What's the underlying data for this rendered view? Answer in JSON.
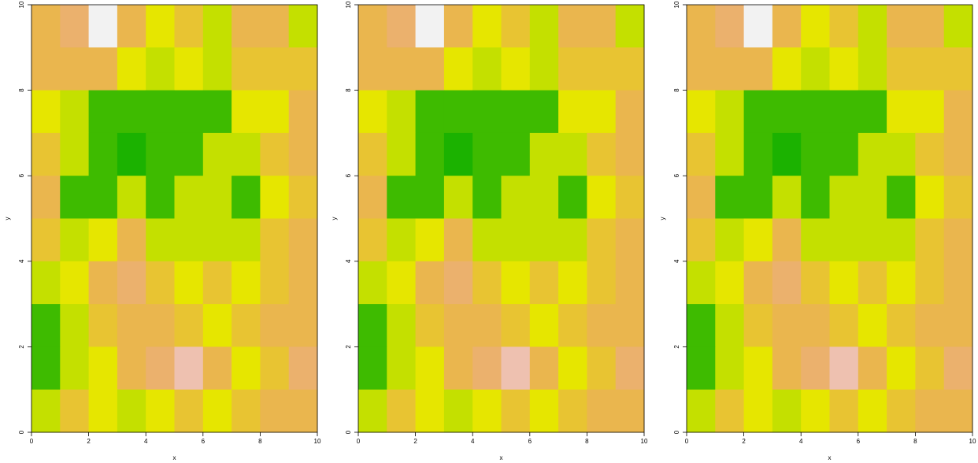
{
  "chart_data": [
    {
      "type": "raster",
      "xlabel": "x",
      "ylabel": "y",
      "xlim": [
        0,
        10
      ],
      "ylim": [
        0,
        10
      ],
      "xticks": [
        0,
        2,
        4,
        6,
        8,
        10
      ],
      "yticks": [
        0,
        2,
        4,
        6,
        8,
        10
      ],
      "palette": [
        "#00a600",
        "#1bb200",
        "#3ebb00",
        "#c4e000",
        "#e6e600",
        "#e8c432",
        "#eab64e",
        "#ebb16d",
        "#eec1b0",
        "#f2f2f2"
      ],
      "z": [
        [
          6,
          7,
          9,
          6,
          4,
          5,
          3,
          6,
          6,
          3
        ],
        [
          6,
          6,
          6,
          4,
          3,
          4,
          3,
          5,
          5,
          5
        ],
        [
          4,
          3,
          2,
          2,
          2,
          2,
          2,
          4,
          4,
          6
        ],
        [
          5,
          3,
          2,
          1,
          2,
          2,
          3,
          3,
          5,
          6
        ],
        [
          6,
          2,
          2,
          3,
          2,
          3,
          3,
          2,
          4,
          5
        ],
        [
          5,
          3,
          4,
          6,
          3,
          3,
          3,
          3,
          5,
          6
        ],
        [
          3,
          4,
          6,
          7,
          5,
          4,
          5,
          4,
          5,
          6
        ],
        [
          2,
          3,
          5,
          6,
          6,
          5,
          4,
          5,
          6,
          6
        ],
        [
          2,
          3,
          4,
          6,
          7,
          8,
          6,
          4,
          5,
          7
        ],
        [
          3,
          5,
          4,
          3,
          4,
          5,
          4,
          5,
          6,
          6
        ]
      ]
    },
    {
      "type": "raster",
      "xlabel": "x",
      "ylabel": "y",
      "xlim": [
        0,
        10
      ],
      "ylim": [
        0,
        10
      ],
      "xticks": [
        0,
        2,
        4,
        6,
        8,
        10
      ],
      "yticks": [
        0,
        2,
        4,
        6,
        8,
        10
      ],
      "palette": [
        "#00a600",
        "#1bb200",
        "#3ebb00",
        "#c4e000",
        "#e6e600",
        "#e8c432",
        "#eab64e",
        "#ebb16d",
        "#eec1b0",
        "#f2f2f2"
      ],
      "z": [
        [
          6,
          7,
          9,
          6,
          4,
          5,
          3,
          6,
          6,
          3
        ],
        [
          6,
          6,
          6,
          4,
          3,
          4,
          3,
          5,
          5,
          5
        ],
        [
          4,
          3,
          2,
          2,
          2,
          2,
          2,
          4,
          4,
          6
        ],
        [
          5,
          3,
          2,
          1,
          2,
          2,
          3,
          3,
          5,
          6
        ],
        [
          6,
          2,
          2,
          3,
          2,
          3,
          3,
          2,
          4,
          5
        ],
        [
          5,
          3,
          4,
          6,
          3,
          3,
          3,
          3,
          5,
          6
        ],
        [
          3,
          4,
          6,
          7,
          5,
          4,
          5,
          4,
          5,
          6
        ],
        [
          2,
          3,
          5,
          6,
          6,
          5,
          4,
          5,
          6,
          6
        ],
        [
          2,
          3,
          4,
          6,
          7,
          8,
          6,
          4,
          5,
          7
        ],
        [
          3,
          5,
          4,
          3,
          4,
          5,
          4,
          5,
          6,
          6
        ]
      ]
    },
    {
      "type": "raster",
      "xlabel": "x",
      "ylabel": "y",
      "xlim": [
        0,
        10
      ],
      "ylim": [
        0,
        10
      ],
      "xticks": [
        0,
        2,
        4,
        6,
        8,
        10
      ],
      "yticks": [
        0,
        2,
        4,
        6,
        8,
        10
      ],
      "palette": [
        "#00a600",
        "#1bb200",
        "#3ebb00",
        "#c4e000",
        "#e6e600",
        "#e8c432",
        "#eab64e",
        "#ebb16d",
        "#eec1b0",
        "#f2f2f2"
      ],
      "z": [
        [
          6,
          7,
          9,
          6,
          4,
          5,
          3,
          6,
          6,
          3
        ],
        [
          6,
          6,
          6,
          4,
          3,
          4,
          3,
          5,
          5,
          5
        ],
        [
          4,
          3,
          2,
          2,
          2,
          2,
          2,
          4,
          4,
          6
        ],
        [
          5,
          3,
          2,
          1,
          2,
          2,
          3,
          3,
          5,
          6
        ],
        [
          6,
          2,
          2,
          3,
          2,
          3,
          3,
          2,
          4,
          5
        ],
        [
          5,
          3,
          4,
          6,
          3,
          3,
          3,
          3,
          5,
          6
        ],
        [
          3,
          4,
          6,
          7,
          5,
          4,
          5,
          4,
          5,
          6
        ],
        [
          2,
          3,
          5,
          6,
          6,
          5,
          4,
          5,
          6,
          6
        ],
        [
          2,
          3,
          4,
          6,
          7,
          8,
          6,
          4,
          5,
          7
        ],
        [
          3,
          5,
          4,
          3,
          4,
          5,
          4,
          5,
          6,
          6
        ]
      ]
    }
  ]
}
